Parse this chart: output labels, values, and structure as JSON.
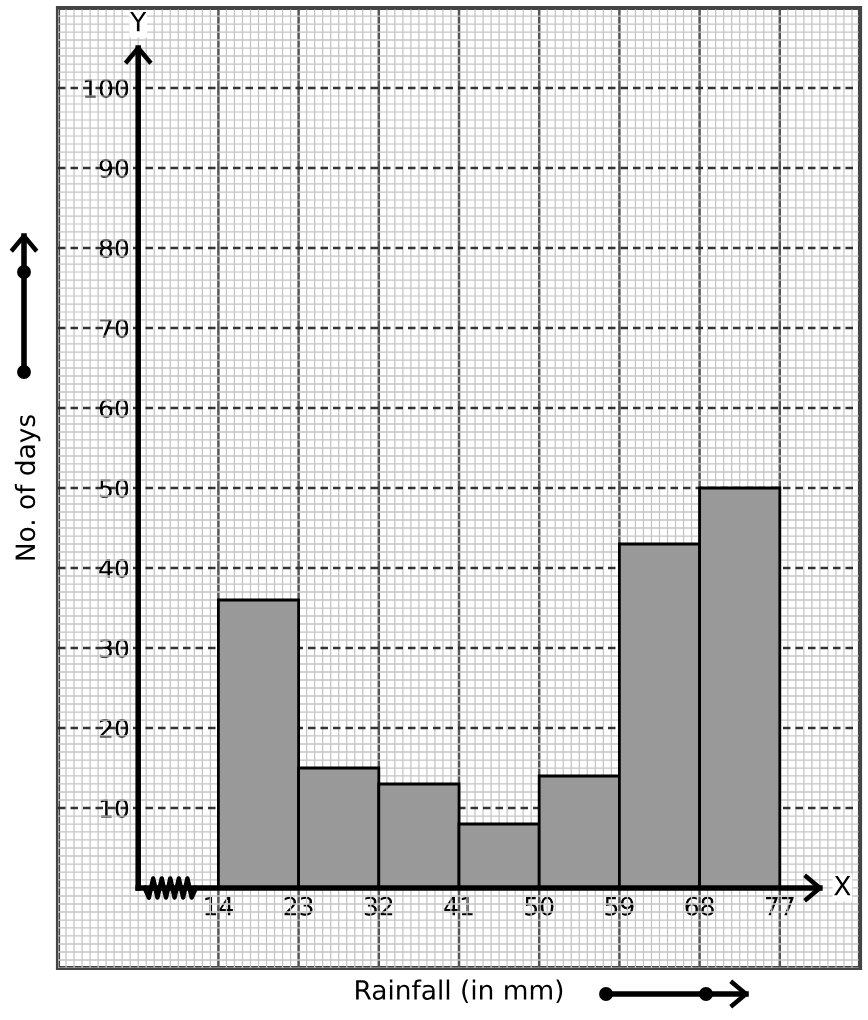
{
  "chart_data": {
    "type": "histogram",
    "bins": [
      14,
      23,
      32,
      41,
      50,
      59,
      68,
      77
    ],
    "values": [
      36,
      15,
      13,
      8,
      14,
      43,
      50
    ],
    "color": "#999999",
    "xlabel": "Rainfall (in mm)",
    "ylabel": "No. of days",
    "annotations": [
      "Y",
      "X"
    ],
    "xlim": [
      -4,
      86
    ],
    "ylim": [
      -10,
      110
    ],
    "xticks": [
      14,
      23,
      32,
      41,
      50,
      59,
      68,
      77
    ],
    "yticks": [
      10,
      20,
      30,
      40,
      50,
      60,
      70,
      80,
      90,
      100
    ],
    "grid": true
  }
}
